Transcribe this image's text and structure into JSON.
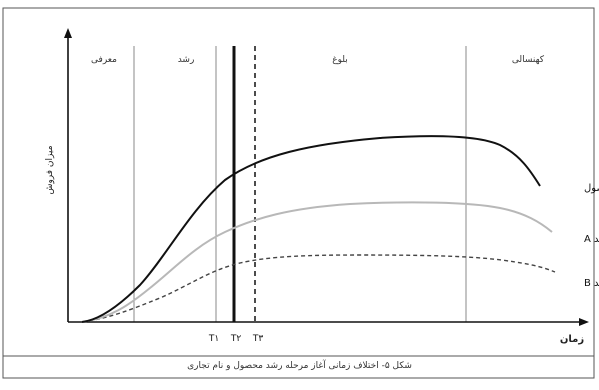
{
  "stage_labels": {
    "introduction": "معرفی",
    "growth": "رشد",
    "maturity": "بلوغ",
    "decline": "کهنسالی"
  },
  "axes": {
    "y_label": "میزان فروش",
    "x_label": "زمان"
  },
  "curve_labels": {
    "product": "محصول",
    "brand_a": "برند A",
    "brand_b": "برند B"
  },
  "time_markers": {
    "t1": "T۱",
    "t2": "T۲",
    "t3": "T۳"
  },
  "caption": "شکل ۵- اختلاف زمانی آغاز مرحله رشد محصول و نام تجاری",
  "colors": {
    "product": "#111111",
    "brand_a": "#b8b8b8",
    "brand_b": "#444444",
    "frame": "#555555",
    "stage_divider": "#888888"
  }
}
